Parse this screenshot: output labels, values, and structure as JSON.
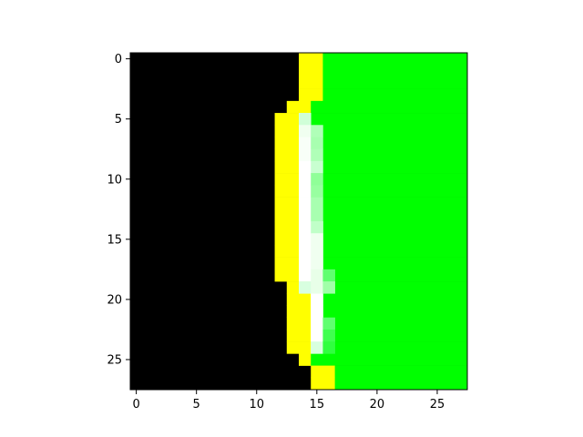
{
  "chart_data": {
    "type": "heatmap",
    "title": "",
    "xlabel": "",
    "ylabel": "",
    "grid": false,
    "legend": "none",
    "xlim": [
      -0.5,
      27.5
    ],
    "ylim": [
      27.5,
      -0.5
    ],
    "x_ticks": [
      0,
      5,
      10,
      15,
      20,
      25
    ],
    "y_ticks": [
      0,
      5,
      10,
      15,
      20,
      25
    ],
    "x_tick_labels": [
      "0",
      "5",
      "10",
      "15",
      "20",
      "25"
    ],
    "y_tick_labels": [
      "0",
      "5",
      "10",
      "15",
      "20",
      "25"
    ],
    "colors": {
      "background": "#000000",
      "edge": "#ffff00",
      "fill": "#00ff00",
      "highlight": "#f0fff0",
      "axis": "#000000"
    },
    "rows": [
      {
        "edge": [
          14,
          15
        ],
        "fill_start": 16
      },
      {
        "edge": [
          14,
          15
        ],
        "fill_start": 16
      },
      {
        "edge": [
          14,
          15
        ],
        "fill_start": 16
      },
      {
        "edge": [
          14,
          15
        ],
        "fill_start": 16
      },
      {
        "edge": [
          13,
          14
        ],
        "fill_start": 15
      },
      {
        "edge": [
          12,
          13
        ],
        "fill_start": 15
      },
      {
        "edge": [
          12,
          13
        ],
        "fill_start": 15
      },
      {
        "edge": [
          12,
          13
        ],
        "fill_start": 15
      },
      {
        "edge": [
          12,
          13
        ],
        "fill_start": 15
      },
      {
        "edge": [
          12,
          13
        ],
        "fill_start": 15
      },
      {
        "edge": [
          12,
          13
        ],
        "fill_start": 15
      },
      {
        "edge": [
          12,
          13
        ],
        "fill_start": 15
      },
      {
        "edge": [
          12,
          13
        ],
        "fill_start": 15
      },
      {
        "edge": [
          12,
          13
        ],
        "fill_start": 15
      },
      {
        "edge": [
          12,
          13
        ],
        "fill_start": 16
      },
      {
        "edge": [
          12,
          13
        ],
        "fill_start": 16
      },
      {
        "edge": [
          12,
          13
        ],
        "fill_start": 16
      },
      {
        "edge": [
          12,
          13
        ],
        "fill_start": 16
      },
      {
        "edge": [
          12,
          13
        ],
        "fill_start": 16
      },
      {
        "edge": [
          13,
          14
        ],
        "fill_start": 16
      },
      {
        "edge": [
          13,
          14
        ],
        "fill_start": 16
      },
      {
        "edge": [
          13,
          14
        ],
        "fill_start": 16
      },
      {
        "edge": [
          13,
          14
        ],
        "fill_start": 16
      },
      {
        "edge": [
          13,
          14
        ],
        "fill_start": 16
      },
      {
        "edge": [
          13,
          14
        ],
        "fill_start": 16
      },
      {
        "edge": [
          14,
          14
        ],
        "fill_start": 15
      },
      {
        "edge": [
          15,
          16
        ],
        "fill_start": 17
      },
      {
        "edge": [
          15,
          16
        ],
        "fill_start": 17
      }
    ],
    "highlights": [
      {
        "row": 5,
        "col": 14,
        "color": "#d0ffd8"
      },
      {
        "row": 6,
        "col": 14,
        "color": "#f0fff0"
      },
      {
        "row": 7,
        "col": 14,
        "color": "#f8fff8"
      },
      {
        "row": 8,
        "col": 14,
        "color": "#f8fff8"
      },
      {
        "row": 9,
        "col": 14,
        "color": "#ffffff"
      },
      {
        "row": 10,
        "col": 14,
        "color": "#ffffff"
      },
      {
        "row": 11,
        "col": 14,
        "color": "#ffffff"
      },
      {
        "row": 12,
        "col": 14,
        "color": "#ffffff"
      },
      {
        "row": 13,
        "col": 14,
        "color": "#ffffff"
      },
      {
        "row": 14,
        "col": 14,
        "color": "#ffffff"
      },
      {
        "row": 15,
        "col": 14,
        "color": "#ffffff"
      },
      {
        "row": 16,
        "col": 14,
        "color": "#ffffff"
      },
      {
        "row": 17,
        "col": 14,
        "color": "#ffffff"
      },
      {
        "row": 18,
        "col": 14,
        "color": "#ffffff"
      },
      {
        "row": 19,
        "col": 14,
        "color": "#d8ffe0"
      },
      {
        "row": 20,
        "col": 15,
        "color": "#ffffff"
      },
      {
        "row": 21,
        "col": 15,
        "color": "#ffffff"
      },
      {
        "row": 22,
        "col": 15,
        "color": "#ffffff"
      },
      {
        "row": 23,
        "col": 15,
        "color": "#ffffff"
      },
      {
        "row": 24,
        "col": 15,
        "color": "#d8ffe0"
      },
      {
        "row": 6,
        "col": 15,
        "color": "#b0ffb8"
      },
      {
        "row": 7,
        "col": 15,
        "color": "#a8ffb0"
      },
      {
        "row": 8,
        "col": 15,
        "color": "#b0ffb8"
      },
      {
        "row": 9,
        "col": 15,
        "color": "#c8ffd0"
      },
      {
        "row": 10,
        "col": 15,
        "color": "#90ff98"
      },
      {
        "row": 11,
        "col": 15,
        "color": "#98ffa0"
      },
      {
        "row": 12,
        "col": 15,
        "color": "#a8ffb0"
      },
      {
        "row": 13,
        "col": 15,
        "color": "#a8ffb0"
      },
      {
        "row": 14,
        "col": 15,
        "color": "#c0ffc8"
      },
      {
        "row": 15,
        "col": 15,
        "color": "#f0fff0"
      },
      {
        "row": 16,
        "col": 15,
        "color": "#f0fff0"
      },
      {
        "row": 17,
        "col": 15,
        "color": "#f0fff0"
      },
      {
        "row": 18,
        "col": 15,
        "color": "#e8ffe8"
      },
      {
        "row": 19,
        "col": 15,
        "color": "#e8ffe8"
      },
      {
        "row": 18,
        "col": 16,
        "color": "#60ff70"
      },
      {
        "row": 19,
        "col": 16,
        "color": "#a0ffa8"
      },
      {
        "row": 22,
        "col": 16,
        "color": "#60ff70"
      },
      {
        "row": 23,
        "col": 16,
        "color": "#40ff50"
      },
      {
        "row": 24,
        "col": 16,
        "color": "#30ff40"
      }
    ]
  }
}
